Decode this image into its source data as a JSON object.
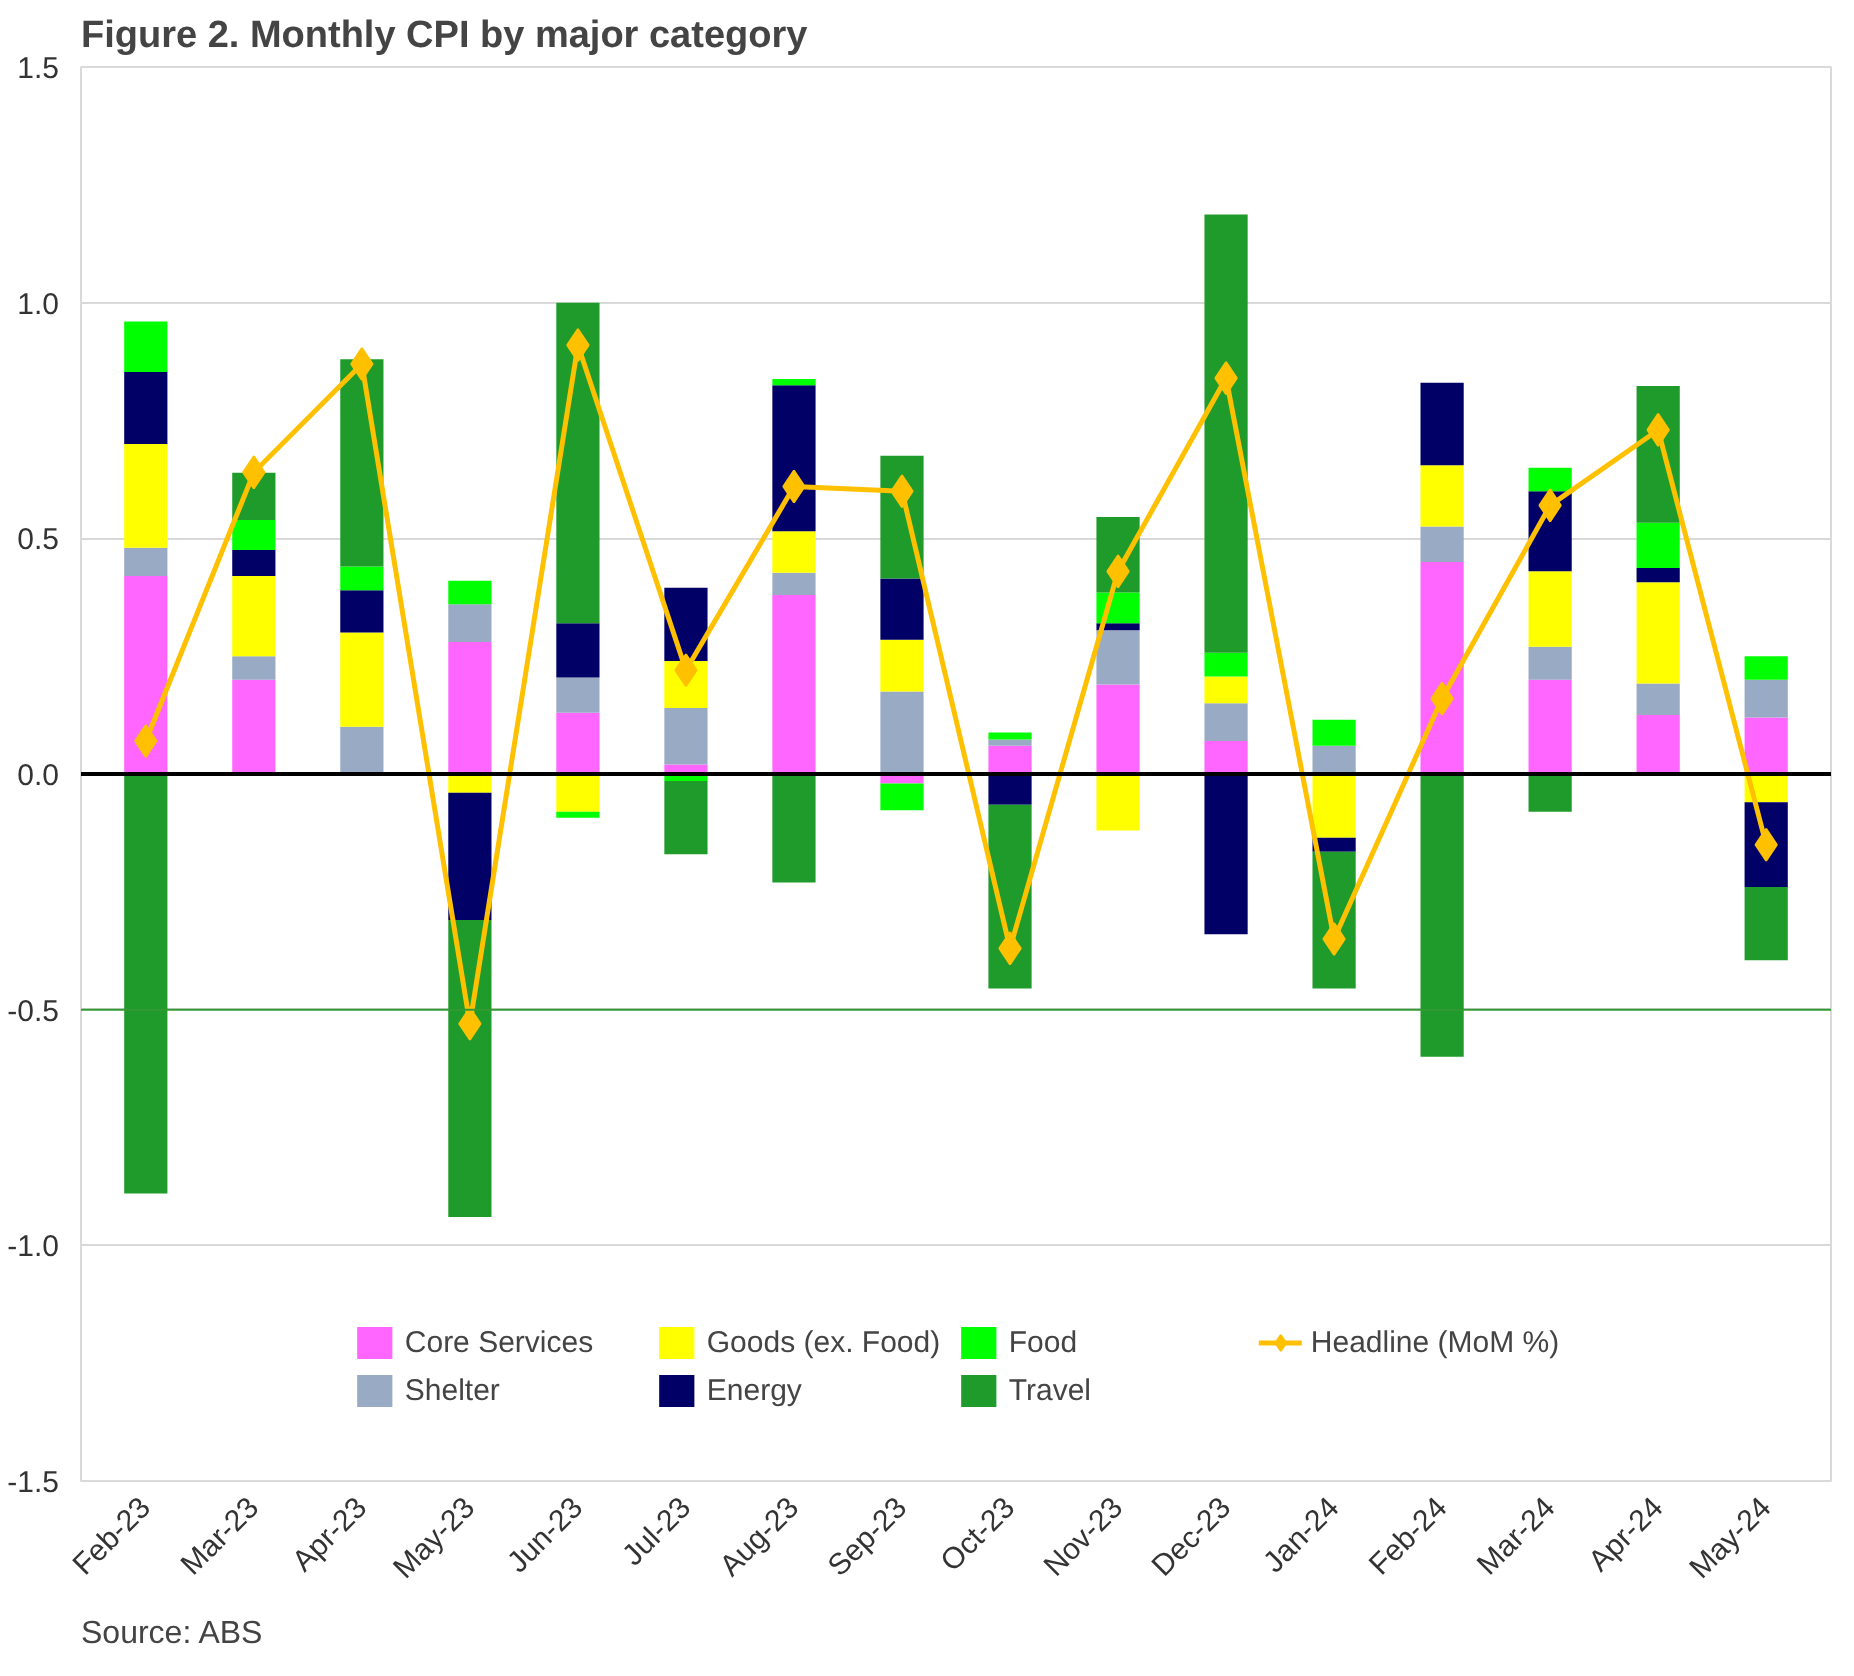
{
  "chart_data": {
    "type": "bar",
    "stacked": true,
    "title": "Figure 2. Monthly CPI by major category",
    "categories": [
      "Feb-23",
      "Mar-23",
      "Apr-23",
      "May-23",
      "Jun-23",
      "Jul-23",
      "Aug-23",
      "Sep-23",
      "Oct-23",
      "Nov-23",
      "Dec-23",
      "Jan-24",
      "Feb-24",
      "Mar-24",
      "Apr-24",
      "May-24"
    ],
    "series": [
      {
        "name": "Core Services",
        "color": "#ff66ff",
        "values": [
          0.42,
          0.2,
          0,
          0.28,
          0.13,
          0.02,
          0.38,
          -0.02,
          0.06,
          0.19,
          0.07,
          0,
          0.45,
          0.2,
          0.125,
          0.12
        ]
      },
      {
        "name": "Shelter",
        "color": "#99aac4",
        "values": [
          0.06,
          0.05,
          0.1,
          0.08,
          0.075,
          0.12,
          0.047,
          0.175,
          0.013,
          0.115,
          0.08,
          0.06,
          0.075,
          0.07,
          0.067,
          0.08
        ]
      },
      {
        "name": "Goods (ex. Food)",
        "color": "#ffff00",
        "values": [
          0.22,
          0.17,
          0.2,
          -0.04,
          -0.08,
          0.1,
          0.088,
          0.11,
          0,
          -0.12,
          0.057,
          -0.135,
          0.13,
          0.16,
          0.215,
          -0.06
        ]
      },
      {
        "name": "Energy",
        "color": "#000066",
        "values": [
          0.153,
          0.055,
          0.09,
          -0.27,
          0.115,
          0.155,
          0.31,
          0.13,
          -0.065,
          0.015,
          -0.34,
          -0.03,
          0.175,
          0.17,
          0.03,
          -0.18
        ]
      },
      {
        "name": "Food",
        "color": "#00ff00",
        "values": [
          0.107,
          0.064,
          0.05,
          0.05,
          -0.013,
          -0.015,
          0.013,
          -0.057,
          0.015,
          0.065,
          0.05,
          0.055,
          0,
          0.05,
          0.096,
          0.05
        ]
      },
      {
        "name": "Travel",
        "color": "#1e9b2a",
        "values": [
          -0.89,
          0.1,
          0.44,
          -0.63,
          0.68,
          -0.155,
          -0.23,
          0.26,
          -0.39,
          0.16,
          0.93,
          -0.29,
          -0.6,
          -0.08,
          0.29,
          -0.155
        ]
      },
      {
        "name": "Headline (MoM %)",
        "type": "line",
        "color": "#ffc000",
        "marker": "diamond",
        "line_style": "solid",
        "values": [
          0.07,
          0.64,
          0.87,
          -0.53,
          0.91,
          0.22,
          0.61,
          0.6,
          -0.37,
          0.43,
          0.84,
          -0.35,
          0.16,
          0.57,
          0.73,
          -0.15
        ]
      }
    ],
    "ylim": [
      -1.5,
      1.5
    ],
    "yticks": [
      {
        "value": -1.5,
        "label": "-1.5"
      },
      {
        "value": -1,
        "label": "-1.0"
      },
      {
        "value": -0.5,
        "label": "-0.5"
      },
      {
        "value": 0,
        "label": "0.0"
      },
      {
        "value": 0.5,
        "label": "0.5"
      },
      {
        "value": 1,
        "label": "1.0"
      },
      {
        "value": 1.5,
        "label": "1.5"
      }
    ],
    "grid": "y",
    "legend": "bottom",
    "ref_lines": [
      {
        "axis": "y",
        "value": 0,
        "color": "#000000"
      },
      {
        "axis": "y",
        "value": -0.5,
        "color": "#339933"
      }
    ],
    "annotations": [
      "Source: ABS"
    ]
  }
}
